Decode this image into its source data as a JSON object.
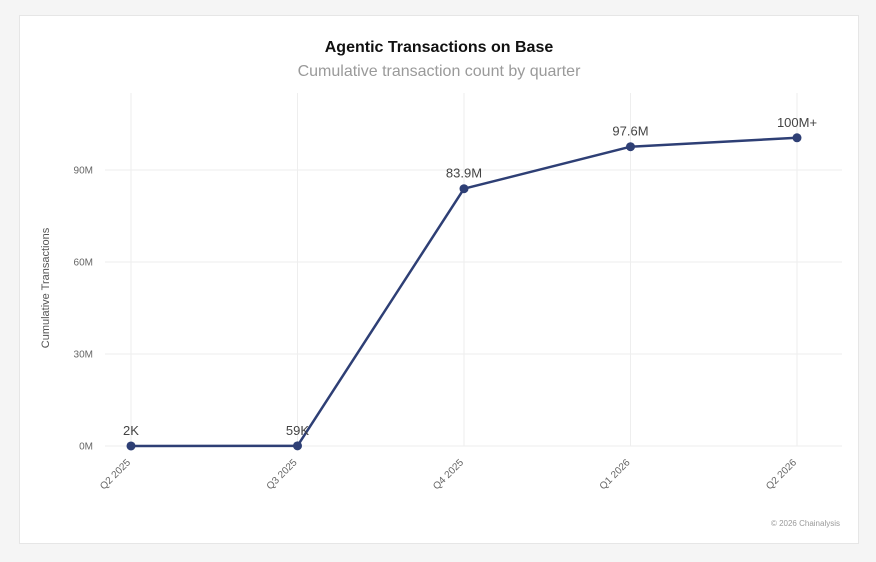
{
  "chart_data": {
    "type": "line",
    "title": "Agentic Transactions on Base",
    "subtitle": "Cumulative transaction count by quarter",
    "ylabel": "Cumulative Transactions",
    "categories": [
      "Q2 2025",
      "Q3 2025",
      "Q4 2025",
      "Q1 2026",
      "Q2 2026"
    ],
    "series": [
      {
        "values": [
          2000,
          59000,
          83900000,
          97600000,
          100500000
        ]
      }
    ],
    "data_labels": [
      "2K",
      "59K",
      "83.9M",
      "97.6M",
      "100M+"
    ],
    "yticks": [
      0,
      30000000,
      60000000,
      90000000
    ],
    "ytick_labels": [
      "0M",
      "30M",
      "60M",
      "90M"
    ],
    "ylim": [
      0,
      115000000
    ],
    "grid": true,
    "legend": "none",
    "colors": {
      "line": "#2e3f75",
      "grid": "#eeeeee"
    },
    "footnote": "© 2026 Chainalysis"
  }
}
